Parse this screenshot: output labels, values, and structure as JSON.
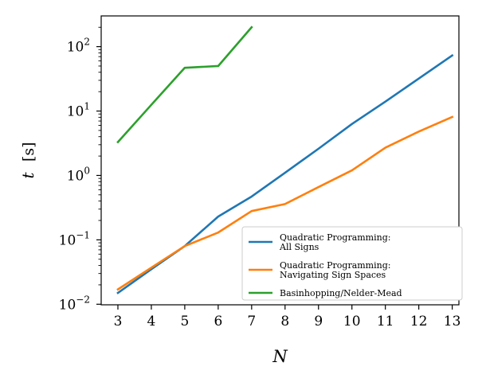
{
  "chart_data": {
    "type": "line",
    "xlabel": "N",
    "ylabel_var": "t",
    "ylabel_unit": "[s]",
    "yscale": "log",
    "xlim": [
      2.5,
      13.2
    ],
    "ylim": [
      0.0098,
      300
    ],
    "xticks": [
      3,
      4,
      5,
      6,
      7,
      8,
      9,
      10,
      11,
      12,
      13
    ],
    "yticks": [
      {
        "value": 0.01,
        "base": "10",
        "exp": "−2"
      },
      {
        "value": 0.1,
        "base": "10",
        "exp": "−1"
      },
      {
        "value": 1,
        "base": "10",
        "exp": "0"
      },
      {
        "value": 10,
        "base": "10",
        "exp": "1"
      },
      {
        "value": 100,
        "base": "10",
        "exp": "2"
      }
    ],
    "grid": false,
    "legend_position": "lower right",
    "series": [
      {
        "name_lines": [
          "Quadratic Programming:",
          "All Signs"
        ],
        "color": "#1f77b4",
        "x": [
          3,
          4,
          5,
          6,
          7,
          8,
          9,
          10,
          11,
          12,
          13
        ],
        "y": [
          0.015,
          0.035,
          0.08,
          0.23,
          0.47,
          1.1,
          2.6,
          6.3,
          14,
          32,
          73
        ]
      },
      {
        "name_lines": [
          "Quadratic Programming:",
          "Navigating Sign Spaces"
        ],
        "color": "#ff7f0e",
        "x": [
          3,
          4,
          5,
          6,
          7,
          8,
          9,
          10,
          11,
          12,
          13
        ],
        "y": [
          0.017,
          0.037,
          0.08,
          0.13,
          0.28,
          0.36,
          0.66,
          1.2,
          2.7,
          4.8,
          8.1
        ]
      },
      {
        "name_lines": [
          "Basinhopping/Nelder-Mead"
        ],
        "color": "#2ca02c",
        "x": [
          3,
          4,
          5,
          6,
          7
        ],
        "y": [
          3.3,
          12.5,
          47,
          50,
          200
        ]
      }
    ]
  }
}
